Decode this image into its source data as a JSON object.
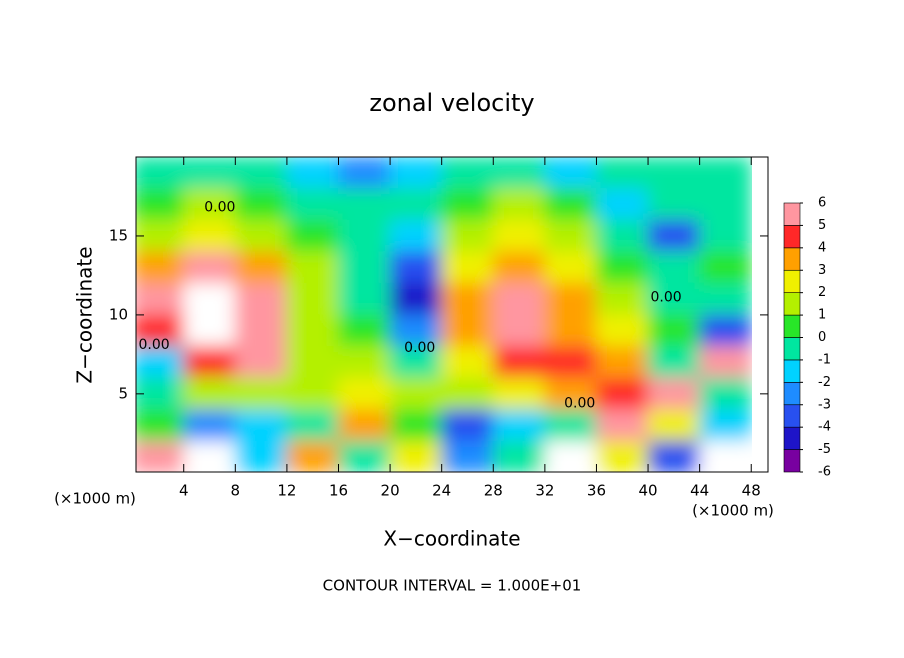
{
  "chart_data": {
    "type": "heatmap",
    "title": "zonal velocity",
    "x_label": "X−coordinate",
    "y_label": "Z−coordinate",
    "x_unit": "(×1000 m)",
    "y_unit": "(×1000 m)",
    "footnote": "CONTOUR INTERVAL = 1.000E+01",
    "x": [
      2,
      6,
      10,
      14,
      18,
      22,
      26,
      30,
      34,
      38,
      42,
      46
    ],
    "y": [
      19,
      17,
      15,
      13,
      11,
      9,
      7,
      5,
      3,
      1
    ],
    "values": [
      [
        -1,
        -1,
        -1,
        -2,
        -3,
        -2,
        -1,
        -1,
        -2,
        -1,
        -1,
        -1
      ],
      [
        0,
        1,
        0,
        -1,
        -1,
        -1,
        0,
        1,
        0,
        -2,
        -1,
        -1
      ],
      [
        1,
        2,
        1,
        0,
        -1,
        -2,
        1,
        2,
        1,
        -1,
        -4,
        -1
      ],
      [
        3,
        5,
        3,
        1,
        -1,
        -4,
        2,
        3,
        2,
        0,
        -1,
        0
      ],
      [
        6,
        7,
        5,
        1,
        -1,
        -5,
        3,
        6,
        3,
        1,
        -1,
        -1
      ],
      [
        4,
        7,
        6,
        1,
        0,
        -3,
        3,
        6,
        3,
        2,
        0,
        -4
      ],
      [
        -2,
        4,
        6,
        1,
        1,
        -1,
        2,
        4,
        4,
        3,
        -1,
        6
      ],
      [
        -1,
        1,
        1,
        1,
        2,
        1,
        1,
        2,
        3,
        4,
        5,
        -1
      ],
      [
        0,
        -3,
        -2,
        -1,
        3,
        0,
        -4,
        -2,
        -1,
        5,
        2,
        -2
      ],
      [
        6,
        7,
        -2,
        3,
        -1,
        2,
        -3,
        -1,
        7,
        2,
        -4,
        8
      ]
    ],
    "xlim": [
      0.3,
      49.3
    ],
    "ylim": [
      0.05,
      20
    ],
    "xticks": [
      4,
      8,
      12,
      16,
      20,
      24,
      28,
      32,
      36,
      40,
      44,
      48
    ],
    "yticks": [
      5,
      10,
      15
    ],
    "colorbar_ticks": [
      6,
      5,
      4,
      3,
      2,
      1,
      0,
      -1,
      -2,
      -3,
      -4,
      -5,
      -6
    ],
    "colorbar_lim": [
      -6,
      6
    ],
    "colors": [
      "#7800a0",
      "#1e14c8",
      "#2850f0",
      "#1e8cff",
      "#00d2ff",
      "#00e6a0",
      "#28e628",
      "#b4f000",
      "#f0f000",
      "#ffa000",
      "#ff2828",
      "#ff96a0"
    ],
    "above_color": "#ffffff",
    "contour_labels": [
      {
        "text": "0.00",
        "x": 6.8,
        "y": 16.8
      },
      {
        "text": "0.00",
        "x": 1.7,
        "y": 8.1
      },
      {
        "text": "0.00",
        "x": 22.3,
        "y": 7.9
      },
      {
        "text": "0.00",
        "x": 34.7,
        "y": 4.4
      },
      {
        "text": "0.00",
        "x": 41.4,
        "y": 11.1
      }
    ]
  }
}
